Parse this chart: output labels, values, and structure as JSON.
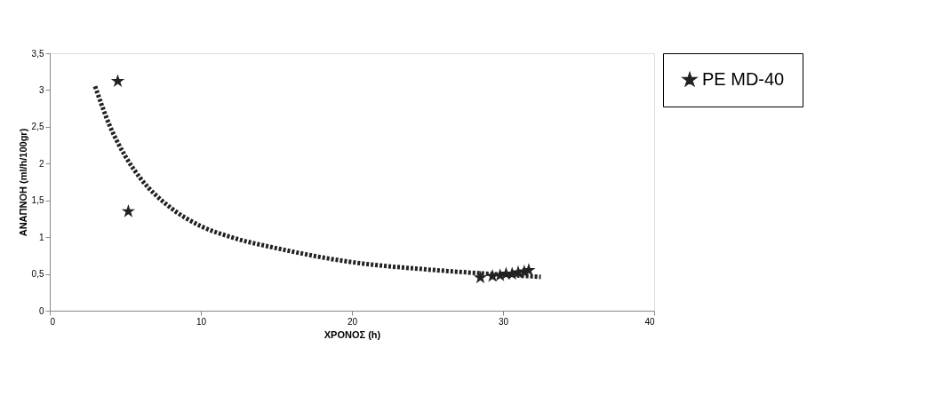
{
  "chart_data": {
    "type": "scatter",
    "xlabel": "ΧΡΟΝΟΣ (h)",
    "ylabel": "ΑΝΑΠΝΟΗ (ml/h/100gr)",
    "xlim": [
      0,
      40
    ],
    "xticks": [
      0,
      10,
      20,
      30,
      40
    ],
    "ylim": [
      0,
      3.5
    ],
    "yticks": [
      0,
      {
        "value": 0.5,
        "label": "0,5"
      },
      1,
      {
        "value": 1.5,
        "label": "1,5"
      },
      2,
      {
        "value": 2.5,
        "label": "2,5"
      },
      3,
      {
        "value": 3.5,
        "label": "3,5"
      }
    ],
    "grid": false,
    "legend": "right",
    "series": [
      {
        "name": "PE MD-40",
        "color": "#222222",
        "marker": "star",
        "x": [
          4.5,
          5.2,
          28.5,
          29.3,
          29.8,
          30.2,
          30.6,
          31.0,
          31.4,
          31.7
        ],
        "values": [
          3.12,
          1.35,
          0.45,
          0.47,
          0.48,
          0.5,
          0.5,
          0.52,
          0.53,
          0.55
        ]
      },
      {
        "color": "#222222",
        "type": "line",
        "marker": "none",
        "line_style": "dotted",
        "x": [
          3,
          4,
          5,
          6,
          8,
          10,
          12,
          15,
          20,
          25,
          30,
          32.5
        ],
        "values": [
          3.05,
          2.5,
          2.1,
          1.8,
          1.4,
          1.15,
          1.0,
          0.85,
          0.66,
          0.56,
          0.49,
          0.46
        ]
      }
    ]
  }
}
